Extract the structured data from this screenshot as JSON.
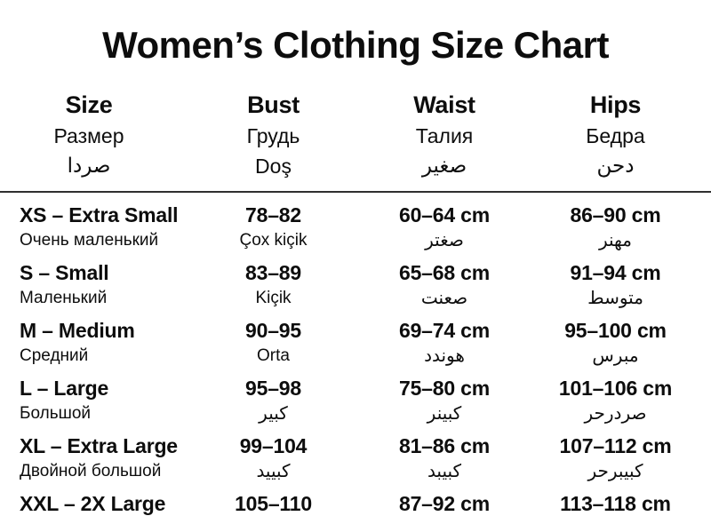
{
  "title": "Women’s Clothing Size Chart",
  "colors": {
    "background": "#ffffff",
    "text": "#0d0d0d",
    "divider": "#2f2f2f"
  },
  "chart_data": {
    "type": "table",
    "title": "Women’s Clothing Size Chart",
    "header": {
      "columns": [
        {
          "en": "Size",
          "ru": "Размер",
          "third": "صردا"
        },
        {
          "en": "Bust",
          "ru": "Грудь",
          "third": "Doş"
        },
        {
          "en": "Waist",
          "ru": "Талия",
          "third": "صغير"
        },
        {
          "en": "Hips",
          "ru": "Бедра",
          "third": "دحن"
        }
      ]
    },
    "rows": [
      {
        "size": "XS – Extra Small",
        "size_sub": "Очень маленький",
        "bust": "78–82",
        "bust_sub": "Çox kiçik",
        "waist": "60–64 cm",
        "waist_sub": "صغتر",
        "hips": "86–90 cm",
        "hips_sub": "مهنر"
      },
      {
        "size": "S – Small",
        "size_sub": "Маленький",
        "bust": "83–89",
        "bust_sub": "Kiçik",
        "waist": "65–68 cm",
        "waist_sub": "صعنت",
        "hips": "91–94 cm",
        "hips_sub": "متوسط"
      },
      {
        "size": "M – Medium",
        "size_sub": "Средний",
        "bust": "90–95",
        "bust_sub": "Orta",
        "waist": "69–74 cm",
        "waist_sub": "هوندد",
        "hips": "95–100 cm",
        "hips_sub": "مبرس"
      },
      {
        "size": "L – Large",
        "size_sub": "Большой",
        "bust": "95–98",
        "bust_sub": "كبير",
        "waist": "75–80 cm",
        "waist_sub": "كبينر",
        "hips": "101–106 cm",
        "hips_sub": "صردرحر"
      },
      {
        "size": "XL – Extra Large",
        "size_sub": "Двойной большой",
        "bust": "99–104",
        "bust_sub": "كبييد",
        "waist": "81–86 cm",
        "waist_sub": "كبيبد",
        "hips": "107–112 cm",
        "hips_sub": "كبيبرحر"
      },
      {
        "size": "XXL – 2X Large",
        "bust": "105–110",
        "waist": "87–92 cm",
        "hips": "113–118 cm"
      }
    ]
  }
}
